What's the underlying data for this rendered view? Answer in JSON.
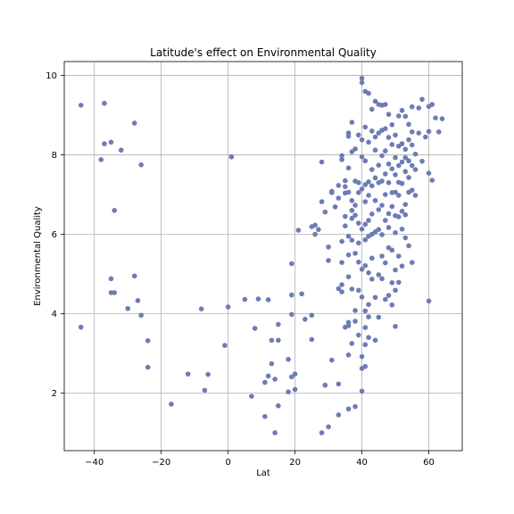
{
  "chart_data": {
    "type": "scatter",
    "title": "Latitude's effect on Environmental Quality",
    "xlabel": "Lat",
    "ylabel": "Environmental Quality",
    "xlim": [
      -49,
      70
    ],
    "ylim": [
      0.55,
      10.35
    ],
    "xticks": [
      -40,
      -20,
      0,
      20,
      40,
      60
    ],
    "yticks": [
      2,
      4,
      6,
      8,
      10
    ],
    "grid": true,
    "colors": {
      "point": "#6c7cb4",
      "grid": "#b0b0b0",
      "axis": "#000000"
    },
    "points": [
      [
        -44,
        9.25
      ],
      [
        -37,
        9.3
      ],
      [
        -37,
        8.28
      ],
      [
        -38,
        7.88
      ],
      [
        -35,
        8.32
      ],
      [
        -32,
        8.12
      ],
      [
        -28,
        8.8
      ],
      [
        -26,
        7.75
      ],
      [
        -34,
        6.6
      ],
      [
        -35,
        4.88
      ],
      [
        -35,
        4.53
      ],
      [
        -34,
        4.53
      ],
      [
        -28,
        4.95
      ],
      [
        -27,
        4.33
      ],
      [
        -30,
        4.13
      ],
      [
        -26,
        3.96
      ],
      [
        -24,
        3.32
      ],
      [
        -24,
        2.65
      ],
      [
        -44,
        3.66
      ],
      [
        -17,
        1.72
      ],
      [
        -12,
        2.48
      ],
      [
        -7,
        2.07
      ],
      [
        -6,
        2.47
      ],
      [
        -8,
        4.12
      ],
      [
        -1,
        3.2
      ],
      [
        0,
        4.17
      ],
      [
        1,
        7.95
      ],
      [
        5,
        4.36
      ],
      [
        7,
        1.92
      ],
      [
        8,
        3.63
      ],
      [
        9,
        4.37
      ],
      [
        12,
        4.35
      ],
      [
        11,
        2.27
      ],
      [
        11,
        1.41
      ],
      [
        12,
        2.43
      ],
      [
        13,
        3.33
      ],
      [
        13,
        2.74
      ],
      [
        14,
        2.35
      ],
      [
        14,
        1.0
      ],
      [
        15,
        3.33
      ],
      [
        15,
        1.68
      ],
      [
        15,
        3.73
      ],
      [
        18,
        2.85
      ],
      [
        18,
        2.03
      ],
      [
        19,
        2.41
      ],
      [
        20,
        2.48
      ],
      [
        20,
        2.09
      ],
      [
        19,
        3.98
      ],
      [
        19,
        4.47
      ],
      [
        19,
        5.26
      ],
      [
        22,
        4.5
      ],
      [
        23,
        3.86
      ],
      [
        25,
        3.35
      ],
      [
        25,
        3.96
      ],
      [
        21,
        6.1
      ],
      [
        25,
        6.19
      ],
      [
        26,
        6.23
      ],
      [
        26,
        6.0
      ],
      [
        27,
        6.12
      ],
      [
        28,
        1.0
      ],
      [
        28,
        6.82
      ],
      [
        28,
        7.82
      ],
      [
        29,
        6.56
      ],
      [
        29,
        2.2
      ],
      [
        30,
        1.15
      ],
      [
        30,
        5.34
      ],
      [
        30,
        5.68
      ],
      [
        31,
        7.05
      ],
      [
        31,
        7.08
      ],
      [
        31,
        2.83
      ],
      [
        32,
        6.69
      ],
      [
        33,
        7.23
      ],
      [
        33,
        6.91
      ],
      [
        33,
        4.63
      ],
      [
        33,
        2.23
      ],
      [
        33,
        1.45
      ],
      [
        34,
        7.88
      ],
      [
        34,
        7.98
      ],
      [
        34,
        5.82
      ],
      [
        34,
        5.29
      ],
      [
        34,
        4.73
      ],
      [
        34,
        4.55
      ],
      [
        35,
        7.35
      ],
      [
        35,
        7.2
      ],
      [
        35,
        7.04
      ],
      [
        35,
        6.45
      ],
      [
        35,
        6.21
      ],
      [
        35,
        3.66
      ],
      [
        36,
        8.55
      ],
      [
        36,
        8.47
      ],
      [
        36,
        7.67
      ],
      [
        36,
        7.06
      ],
      [
        36,
        5.95
      ],
      [
        36,
        5.48
      ],
      [
        36,
        4.93
      ],
      [
        36,
        3.78
      ],
      [
        36,
        3.7
      ],
      [
        36,
        2.96
      ],
      [
        36,
        1.6
      ],
      [
        37,
        8.82
      ],
      [
        37,
        8.08
      ],
      [
        37,
        6.85
      ],
      [
        37,
        6.6
      ],
      [
        37,
        6.4
      ],
      [
        37,
        5.85
      ],
      [
        37,
        4.62
      ],
      [
        37,
        3.25
      ],
      [
        38,
        8.15
      ],
      [
        38,
        7.34
      ],
      [
        38,
        6.73
      ],
      [
        38,
        6.48
      ],
      [
        38,
        5.52
      ],
      [
        38,
        4.08
      ],
      [
        38,
        3.81
      ],
      [
        38,
        1.66
      ],
      [
        39,
        8.5
      ],
      [
        39,
        7.3
      ],
      [
        39,
        7.05
      ],
      [
        39,
        6.28
      ],
      [
        39,
        5.78
      ],
      [
        39,
        5.3
      ],
      [
        39,
        4.59
      ],
      [
        39,
        3.46
      ],
      [
        40,
        9.82
      ],
      [
        40,
        9.93
      ],
      [
        40,
        8.38
      ],
      [
        40,
        7.95
      ],
      [
        40,
        7.14
      ],
      [
        40,
        6.13
      ],
      [
        40,
        5.12
      ],
      [
        40,
        4.42
      ],
      [
        40,
        2.92
      ],
      [
        40,
        2.62
      ],
      [
        40,
        2.05
      ],
      [
        41,
        9.6
      ],
      [
        41,
        8.7
      ],
      [
        41,
        7.85
      ],
      [
        41,
        7.25
      ],
      [
        41,
        6.82
      ],
      [
        41,
        6.25
      ],
      [
        41,
        5.86
      ],
      [
        41,
        5.21
      ],
      [
        41,
        4.07
      ],
      [
        41,
        3.65
      ],
      [
        41,
        3.22
      ],
      [
        41,
        2.67
      ],
      [
        42,
        9.55
      ],
      [
        42,
        8.32
      ],
      [
        42,
        7.32
      ],
      [
        42,
        6.98
      ],
      [
        42,
        6.35
      ],
      [
        42,
        5.95
      ],
      [
        42,
        5.03
      ],
      [
        42,
        4.23
      ],
      [
        42,
        3.92
      ],
      [
        42,
        3.4
      ],
      [
        43,
        9.15
      ],
      [
        43,
        8.6
      ],
      [
        43,
        7.63
      ],
      [
        43,
        7.22
      ],
      [
        43,
        6.51
      ],
      [
        43,
        6.0
      ],
      [
        43,
        5.4
      ],
      [
        43,
        4.87
      ],
      [
        44,
        9.35
      ],
      [
        44,
        8.45
      ],
      [
        44,
        8.12
      ],
      [
        44,
        7.42
      ],
      [
        44,
        6.85
      ],
      [
        44,
        6.06
      ],
      [
        44,
        4.41
      ],
      [
        44,
        3.33
      ],
      [
        45,
        9.27
      ],
      [
        45,
        8.55
      ],
      [
        45,
        7.74
      ],
      [
        45,
        7.3
      ],
      [
        45,
        6.62
      ],
      [
        45,
        6.12
      ],
      [
        45,
        4.98
      ],
      [
        45,
        3.91
      ],
      [
        46,
        9.25
      ],
      [
        46,
        8.62
      ],
      [
        46,
        7.98
      ],
      [
        46,
        7.34
      ],
      [
        46,
        6.73
      ],
      [
        46,
        5.99
      ],
      [
        46,
        5.45
      ],
      [
        46,
        4.88
      ],
      [
        47,
        9.27
      ],
      [
        47,
        8.66
      ],
      [
        47,
        8.1
      ],
      [
        47,
        7.52
      ],
      [
        47,
        7.0
      ],
      [
        47,
        6.35
      ],
      [
        47,
        5.28
      ],
      [
        47,
        4.36
      ],
      [
        48,
        9.02
      ],
      [
        48,
        8.44
      ],
      [
        48,
        7.77
      ],
      [
        48,
        7.3
      ],
      [
        48,
        6.52
      ],
      [
        48,
        6.17
      ],
      [
        48,
        5.66
      ],
      [
        48,
        4.46
      ],
      [
        49,
        8.76
      ],
      [
        49,
        8.26
      ],
      [
        49,
        7.65
      ],
      [
        49,
        7.05
      ],
      [
        49,
        6.7
      ],
      [
        49,
        5.6
      ],
      [
        49,
        4.78
      ],
      [
        49,
        4.22
      ],
      [
        50,
        8.5
      ],
      [
        50,
        7.93
      ],
      [
        50,
        7.5
      ],
      [
        50,
        7.06
      ],
      [
        50,
        6.47
      ],
      [
        50,
        6.04
      ],
      [
        50,
        5.1
      ],
      [
        50,
        4.59
      ],
      [
        50,
        3.68
      ],
      [
        51,
        8.98
      ],
      [
        51,
        8.22
      ],
      [
        51,
        7.73
      ],
      [
        51,
        7.31
      ],
      [
        51,
        6.98
      ],
      [
        51,
        6.44
      ],
      [
        51,
        5.45
      ],
      [
        51,
        4.79
      ],
      [
        52,
        9.12
      ],
      [
        52,
        8.28
      ],
      [
        52,
        7.82
      ],
      [
        52,
        7.28
      ],
      [
        52,
        6.58
      ],
      [
        52,
        6.13
      ],
      [
        52,
        5.2
      ],
      [
        53,
        8.97
      ],
      [
        53,
        8.14
      ],
      [
        53,
        7.58
      ],
      [
        53,
        6.75
      ],
      [
        53,
        6.49
      ],
      [
        53,
        5.91
      ],
      [
        54,
        8.77
      ],
      [
        54,
        8.38
      ],
      [
        54,
        7.85
      ],
      [
        54,
        7.43
      ],
      [
        54,
        7.06
      ],
      [
        54,
        5.71
      ],
      [
        55,
        9.21
      ],
      [
        55,
        8.58
      ],
      [
        55,
        8.25
      ],
      [
        55,
        7.73
      ],
      [
        55,
        7.11
      ],
      [
        55,
        5.29
      ],
      [
        56,
        7.63
      ],
      [
        56,
        6.98
      ],
      [
        57,
        8.55
      ],
      [
        58,
        9.4
      ],
      [
        59,
        8.45
      ],
      [
        60,
        9.22
      ],
      [
        60,
        8.59
      ],
      [
        60,
        7.54
      ],
      [
        60,
        4.32
      ],
      [
        61,
        9.27
      ],
      [
        61,
        7.36
      ],
      [
        62,
        8.93
      ],
      [
        63,
        8.58
      ],
      [
        64,
        8.91
      ],
      [
        57,
        9.18
      ],
      [
        56,
        8.02
      ],
      [
        58,
        7.84
      ],
      [
        53,
        7.93
      ]
    ]
  }
}
